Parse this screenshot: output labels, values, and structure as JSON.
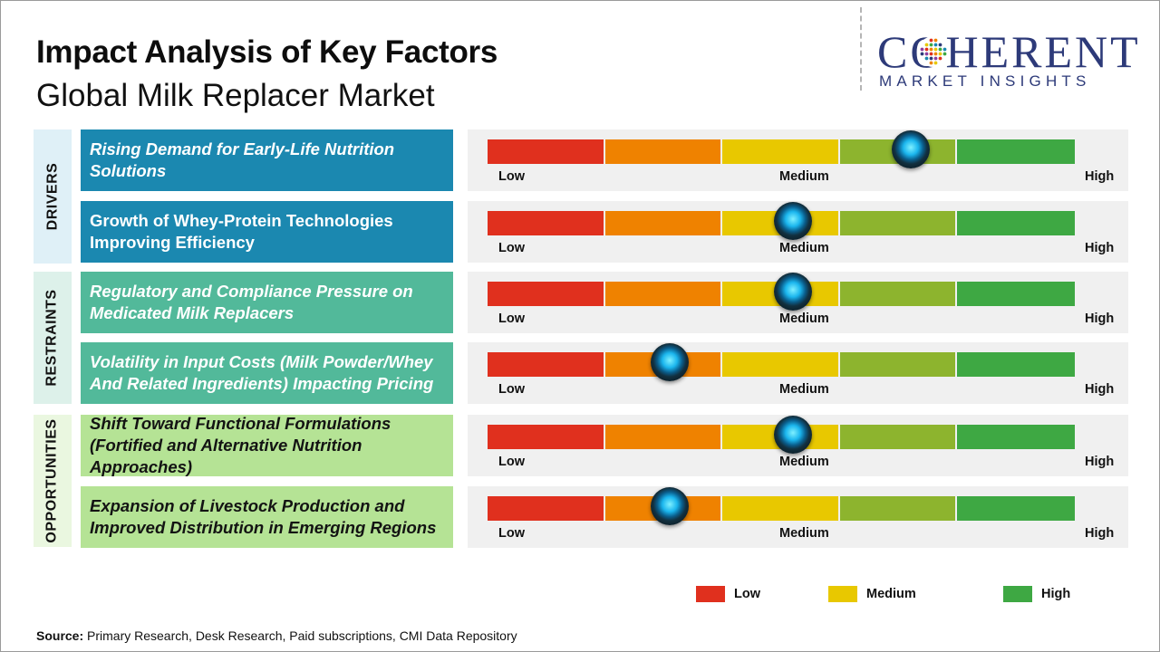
{
  "header": {
    "title": "Impact Analysis of Key Factors",
    "subtitle": "Global Milk Replacer Market"
  },
  "logo": {
    "word": "COHERENT",
    "sub": "MARKET INSIGHTS"
  },
  "colors": {
    "low": "#e0301e",
    "medium_low": "#ef8200",
    "medium": "#e8c800",
    "medium_high": "#8db42e",
    "high": "#3ea843",
    "drivers_bg": "#1b88b0",
    "restraints_bg": "#52b99a",
    "opportunities_bg": "#b5e395"
  },
  "chart_data": {
    "type": "table",
    "title": "Impact Analysis of Key Factors",
    "scale": [
      "Low",
      "Medium",
      "High"
    ],
    "categories": [
      {
        "name": "DRIVERS",
        "factors": [
          {
            "label": "Rising Demand for Early-Life Nutrition Solutions",
            "impact": 0.72
          },
          {
            "label": "Growth of Whey-Protein Technologies Improving Efficiency",
            "impact": 0.52
          }
        ]
      },
      {
        "name": "RESTRAINTS",
        "factors": [
          {
            "label": "Regulatory and Compliance Pressure on Medicated Milk Replacers",
            "impact": 0.52
          },
          {
            "label": "Volatility in Input Costs (Milk Powder/Whey And Related Ingredients) Impacting Pricing",
            "impact": 0.31
          }
        ]
      },
      {
        "name": "OPPORTUNITIES",
        "factors": [
          {
            "label": "Shift Toward Functional Formulations (Fortified and Alternative Nutrition Approaches)",
            "impact": 0.52
          },
          {
            "label": "Expansion of Livestock Production and Improved Distribution in Emerging Regions",
            "impact": 0.31
          }
        ]
      }
    ],
    "legend": [
      "Low",
      "Medium",
      "High"
    ],
    "legend_position": "bottom-right"
  },
  "source": {
    "label": "Source:",
    "text": " Primary Research, Desk Research, Paid subscriptions, CMI Data Repository"
  }
}
